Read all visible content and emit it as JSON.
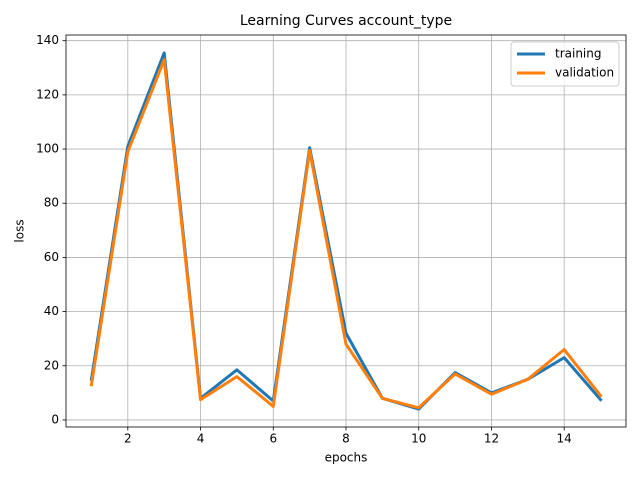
{
  "chart_data": {
    "type": "line",
    "title": "Learning Curves account_type",
    "x_label": "epochs",
    "y_label": "loss",
    "x": [
      1,
      2,
      3,
      4,
      5,
      6,
      7,
      8,
      9,
      10,
      11,
      12,
      13,
      14,
      15
    ],
    "series": [
      {
        "name": "training",
        "color": "#1f77b4",
        "values": [
          15,
          101,
          135.5,
          8,
          18.5,
          7,
          100.5,
          32,
          8,
          4,
          17.5,
          10,
          15,
          23,
          7.5
        ]
      },
      {
        "name": "validation",
        "color": "#ff7f0e",
        "values": [
          13,
          99,
          133,
          7.5,
          16,
          5,
          99.5,
          28,
          8,
          4.5,
          17,
          9.5,
          15,
          26,
          9
        ]
      }
    ],
    "xlim": [
      0.3,
      15.7
    ],
    "xticks": [
      2,
      4,
      6,
      8,
      10,
      12,
      14
    ],
    "ylim": [
      -2.6,
      142.1
    ],
    "yticks": [
      0,
      20,
      40,
      60,
      80,
      100,
      120,
      140
    ],
    "grid": true,
    "legend": "upper-right"
  }
}
